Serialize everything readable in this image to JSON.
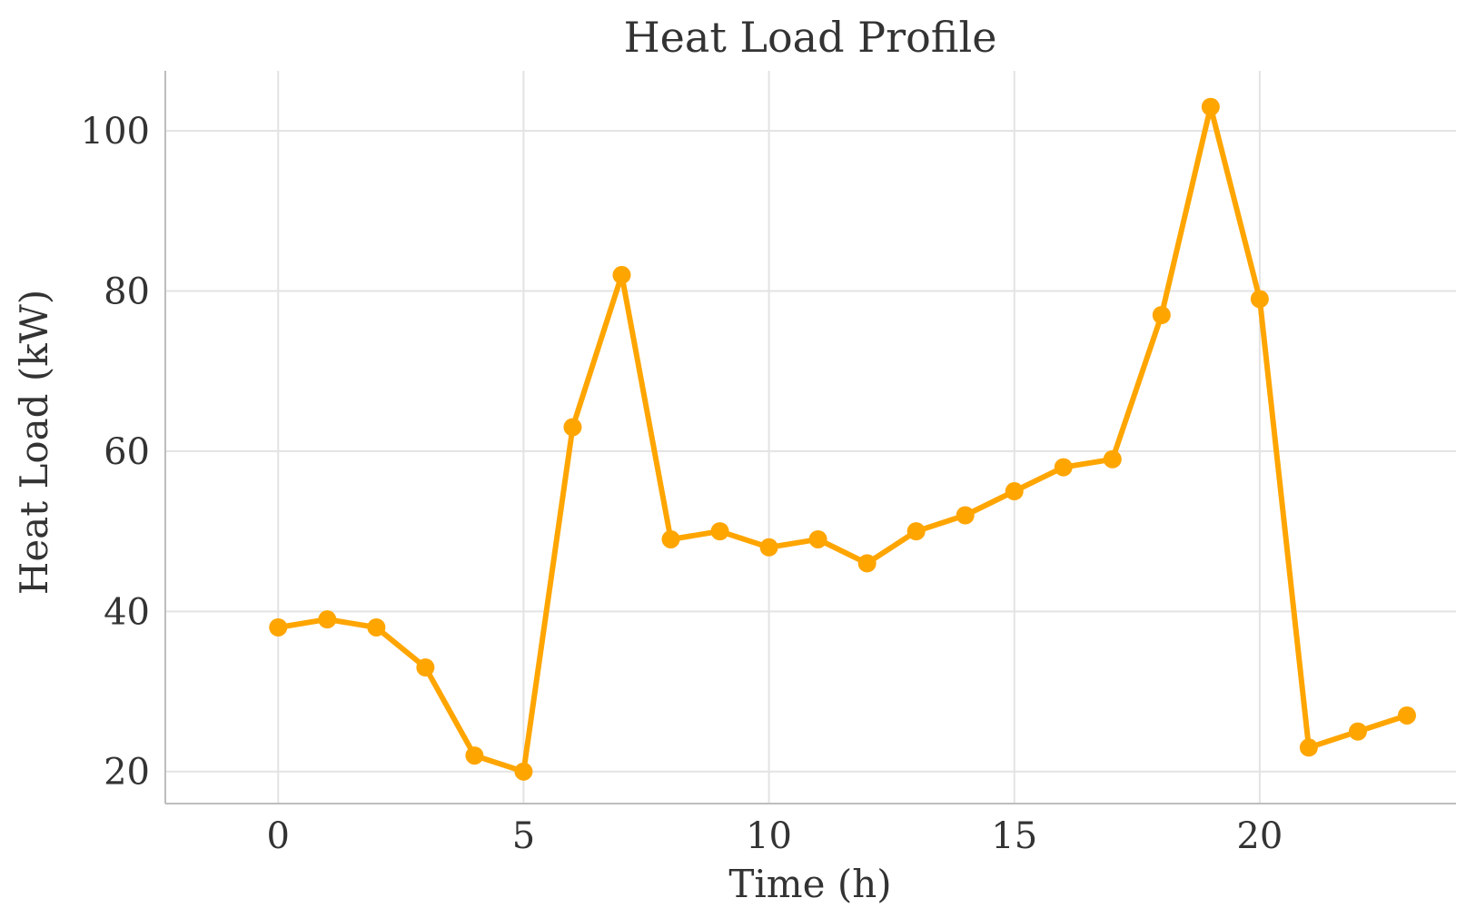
{
  "chart_data": {
    "type": "line",
    "title": "Heat Load Profile",
    "xlabel": "Time (h)",
    "ylabel": "Heat Load (kW)",
    "xlim": [
      -2.3,
      24.0
    ],
    "ylim": [
      16.0,
      107.5
    ],
    "xticks": [
      0,
      5,
      10,
      15,
      20
    ],
    "yticks": [
      20,
      40,
      60,
      80,
      100
    ],
    "grid": true,
    "legend": "none",
    "series": [
      {
        "color": "#FFA500",
        "marker": "circle",
        "x": [
          0,
          1,
          2,
          3,
          4,
          5,
          6,
          7,
          8,
          9,
          10,
          11,
          12,
          13,
          14,
          15,
          16,
          17,
          18,
          19,
          20,
          21,
          22,
          23
        ],
        "y": [
          38,
          39,
          38,
          33,
          22,
          20,
          63,
          82,
          49,
          50,
          48,
          49,
          46,
          50,
          52,
          55,
          58,
          59,
          77,
          103,
          79,
          23,
          25,
          27
        ]
      }
    ]
  }
}
